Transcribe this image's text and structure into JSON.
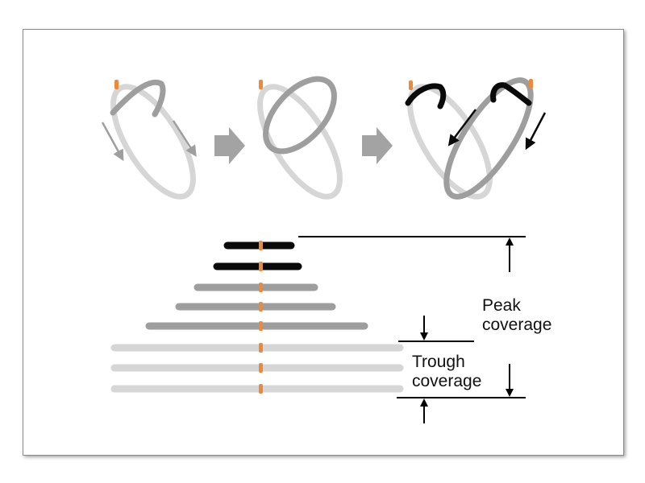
{
  "labels": {
    "peak": [
      "Peak",
      "coverage"
    ],
    "trough": [
      "Trough",
      "coverage"
    ]
  },
  "colors": {
    "light_strand": "#d6d6d6",
    "mid_strand": "#9e9e9e",
    "dark_strand": "#0a0a0a",
    "origin_mark": "#ec8a3c",
    "step_arrow": "#a3a3a3",
    "dimension_lines": "#000000"
  },
  "icons": [
    "step-right-arrow-icon",
    "rotation-arrow-icon",
    "dimension-arrow-icon"
  ],
  "steps": [
    {
      "name": "step-1",
      "description_hidden": true
    },
    {
      "name": "step-2",
      "description_hidden": true
    },
    {
      "name": "step-3",
      "description_hidden": true
    }
  ],
  "coverage_stack": {
    "reads_dark": 2,
    "reads_mid": 3,
    "reads_light": 3
  }
}
